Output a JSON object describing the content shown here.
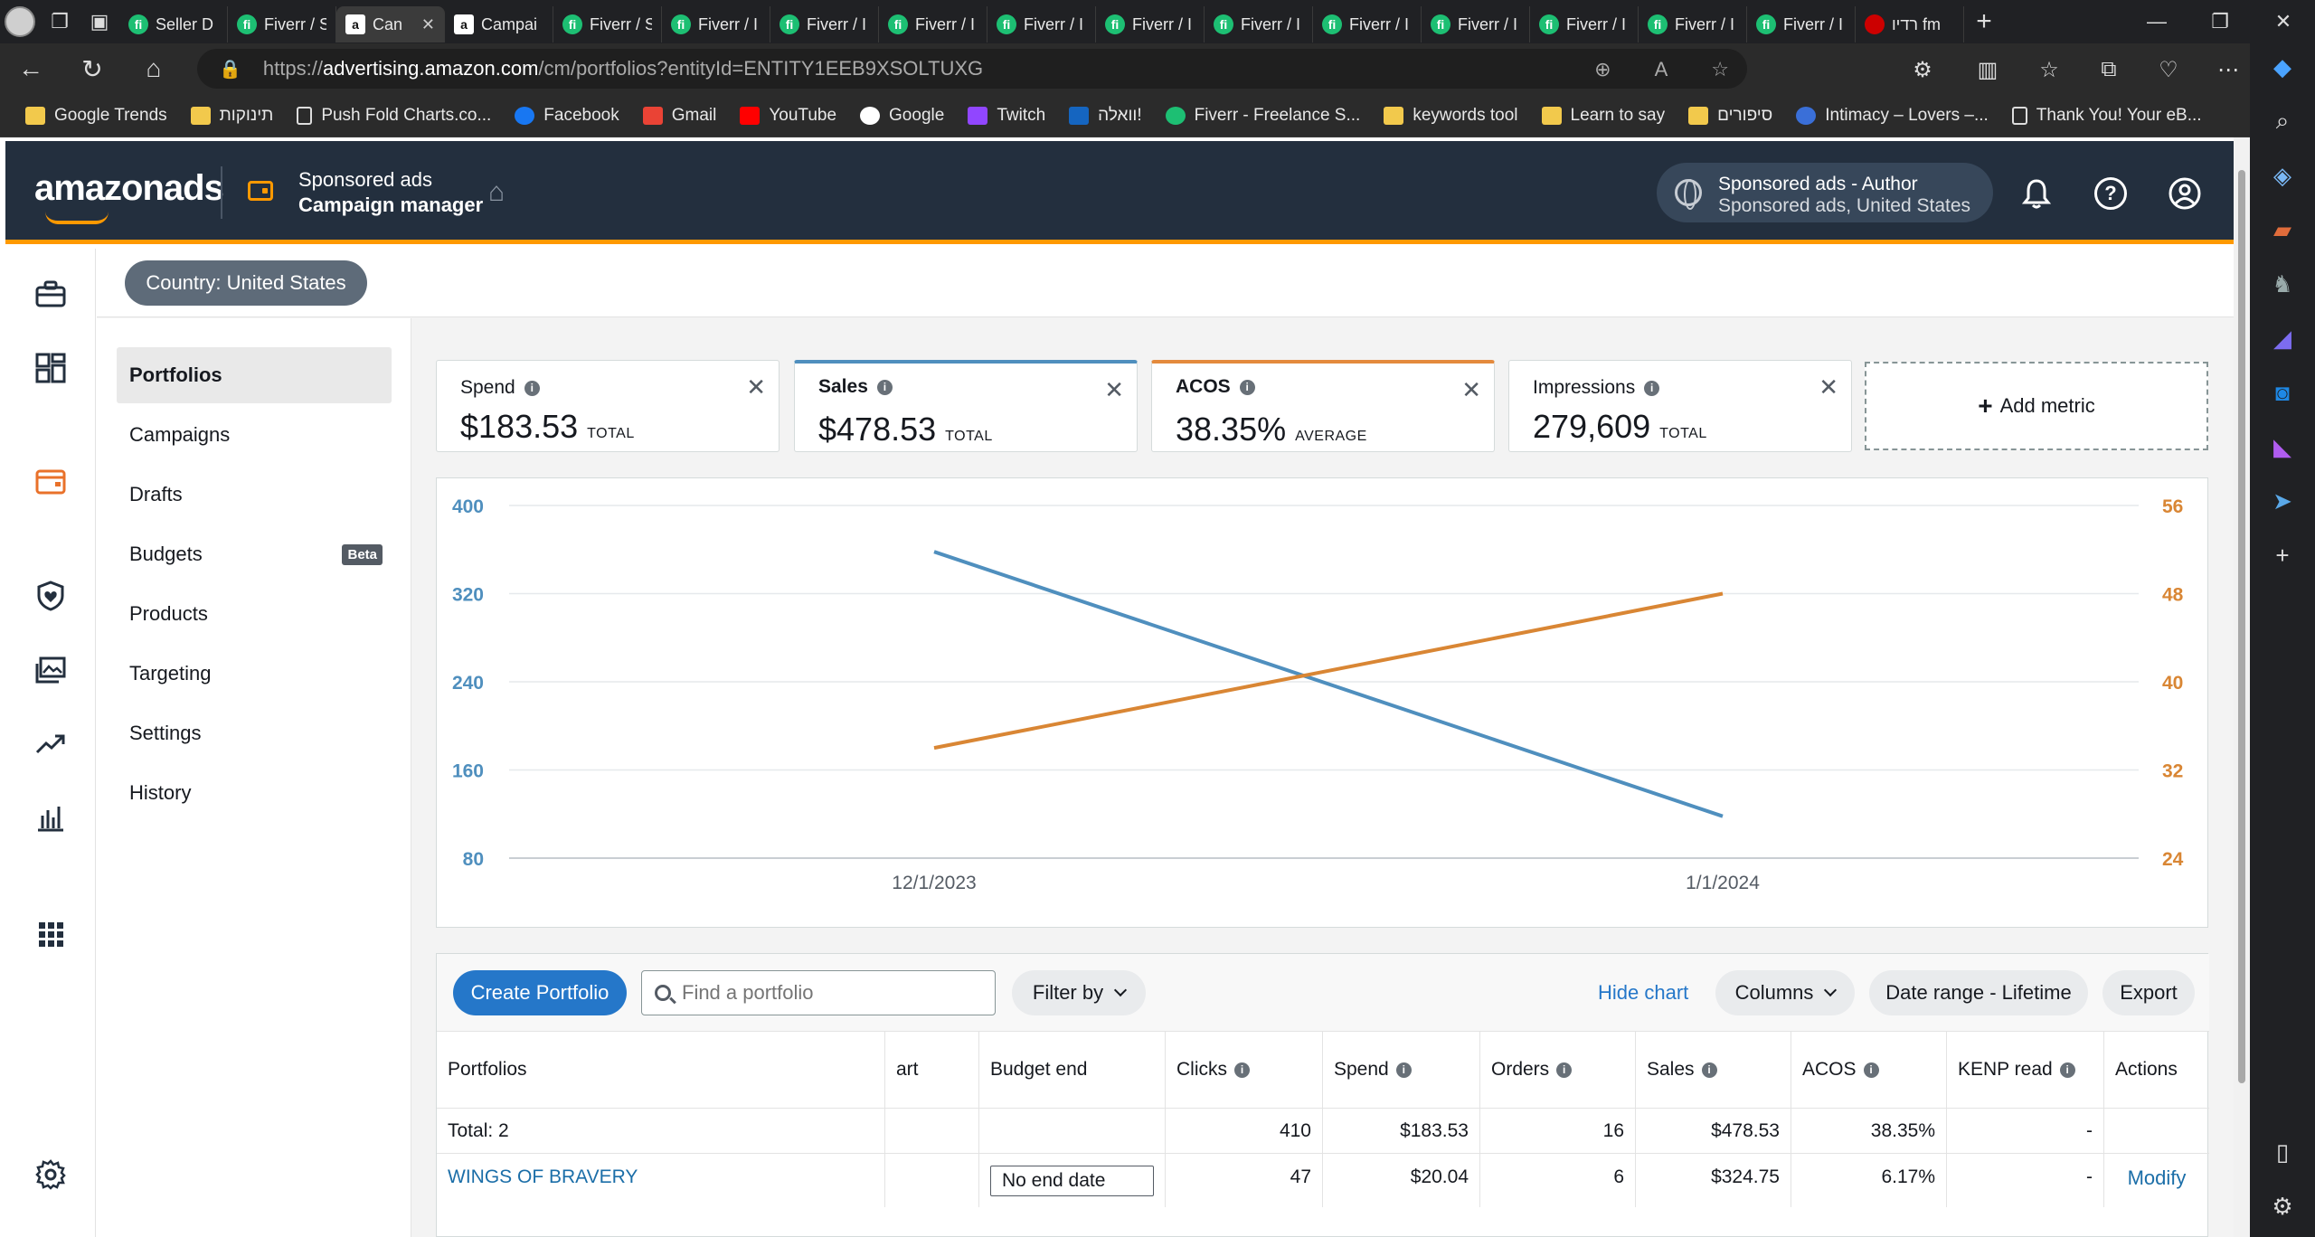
{
  "browser": {
    "tabs": [
      {
        "title": "Seller D",
        "icon": "fiverr"
      },
      {
        "title": "Fiverr / S",
        "icon": "fiverr"
      },
      {
        "title": "Can",
        "icon": "amazon",
        "active": true
      },
      {
        "title": "Campai",
        "icon": "amazon"
      },
      {
        "title": "Fiverr / S",
        "icon": "fiverr"
      },
      {
        "title": "Fiverr / I",
        "icon": "fiverr"
      },
      {
        "title": "Fiverr / I",
        "icon": "fiverr"
      },
      {
        "title": "Fiverr / I",
        "icon": "fiverr"
      },
      {
        "title": "Fiverr / I",
        "icon": "fiverr"
      },
      {
        "title": "Fiverr / I",
        "icon": "fiverr"
      },
      {
        "title": "Fiverr / I",
        "icon": "fiverr"
      },
      {
        "title": "Fiverr / I",
        "icon": "fiverr"
      },
      {
        "title": "Fiverr / I",
        "icon": "fiverr"
      },
      {
        "title": "Fiverr / I",
        "icon": "fiverr"
      },
      {
        "title": "Fiverr / I",
        "icon": "fiverr"
      },
      {
        "title": "Fiverr / I",
        "icon": "fiverr"
      },
      {
        "title": "רדיו fm",
        "icon": "radio"
      }
    ],
    "url_prefix": "https://",
    "url_host": "advertising.amazon.com",
    "url_path": "/cm/portfolios?entityId=ENTITY1EEB9XSOLTUXG",
    "bookmarks": [
      {
        "label": "Google Trends",
        "icon": "folder"
      },
      {
        "label": "תינוקות",
        "icon": "folder"
      },
      {
        "label": "Push Fold Charts.co...",
        "icon": "page"
      },
      {
        "label": "Facebook",
        "icon": "facebook"
      },
      {
        "label": "Gmail",
        "icon": "gmail"
      },
      {
        "label": "YouTube",
        "icon": "youtube"
      },
      {
        "label": "Google",
        "icon": "google"
      },
      {
        "label": "Twitch",
        "icon": "twitch"
      },
      {
        "label": "וואלה!",
        "icon": "walla"
      },
      {
        "label": "Fiverr - Freelance S...",
        "icon": "fiverr"
      },
      {
        "label": "keywords tool",
        "icon": "folder"
      },
      {
        "label": "Learn to say",
        "icon": "folder"
      },
      {
        "label": "סיפורים",
        "icon": "folder"
      },
      {
        "label": "Intimacy – Lovers –...",
        "icon": "circle"
      },
      {
        "label": "Thank You! Your eB...",
        "icon": "page"
      }
    ]
  },
  "header": {
    "logo": "amazonads",
    "product_line1": "Sponsored ads",
    "product_line2": "Campaign manager",
    "account_line1": "Sponsored ads - Author",
    "account_line2": "Sponsored ads, United States",
    "help_glyph": "?"
  },
  "country_filter": "Country: United States",
  "subnav": [
    {
      "label": "Portfolios",
      "active": true
    },
    {
      "label": "Campaigns"
    },
    {
      "label": "Drafts"
    },
    {
      "label": "Budgets",
      "badge": "Beta"
    },
    {
      "label": "Products"
    },
    {
      "label": "Targeting"
    },
    {
      "label": "Settings"
    },
    {
      "label": "History"
    }
  ],
  "metrics": [
    {
      "label": "Spend",
      "value": "$183.53",
      "unit": "TOTAL"
    },
    {
      "label": "Sales",
      "value": "$478.53",
      "unit": "TOTAL",
      "accent": "#4f8fbe"
    },
    {
      "label": "ACOS",
      "value": "38.35%",
      "unit": "AVERAGE",
      "accent": "#e48a3d"
    },
    {
      "label": "Impressions",
      "value": "279,609",
      "unit": "TOTAL"
    }
  ],
  "add_metric": "Add metric",
  "chart_data": {
    "type": "line",
    "categories": [
      "12/1/2023",
      "1/1/2024"
    ],
    "series": [
      {
        "axis": "left",
        "color": "#4f8fbe",
        "values": [
          358,
          118
        ]
      },
      {
        "axis": "right",
        "color": "#d98634",
        "values": [
          34,
          48
        ]
      }
    ],
    "y_left": {
      "ticks": [
        "400",
        "320",
        "240",
        "160",
        "80"
      ],
      "range": [
        80,
        400
      ]
    },
    "y_right": {
      "ticks": [
        "56",
        "48",
        "40",
        "32",
        "24"
      ],
      "range": [
        24,
        56
      ]
    },
    "grid": true
  },
  "toolbar": {
    "create": "Create Portfolio",
    "search_placeholder": "Find a portfolio",
    "filter": "Filter by",
    "hide_chart": "Hide chart",
    "columns": "Columns",
    "date_range": "Date range - Lifetime",
    "export": "Export"
  },
  "table": {
    "headers": {
      "portfolios": "Portfolios",
      "start": "art",
      "budget_end": "Budget end",
      "clicks": "Clicks",
      "spend": "Spend",
      "orders": "Orders",
      "sales": "Sales",
      "acos": "ACOS",
      "kenp": "KENP read",
      "actions": "Actions"
    },
    "total": {
      "label": "Total: 2",
      "clicks": "410",
      "spend": "$183.53",
      "orders": "16",
      "sales": "$478.53",
      "acos": "38.35%",
      "kenp": "-"
    },
    "rows": [
      {
        "name": "WINGS OF BRAVERY",
        "budget_end": "No end date",
        "clicks": "47",
        "spend": "$20.04",
        "orders": "6",
        "sales": "$324.75",
        "acos": "6.17%",
        "kenp": "-",
        "action": "Modify"
      }
    ]
  }
}
